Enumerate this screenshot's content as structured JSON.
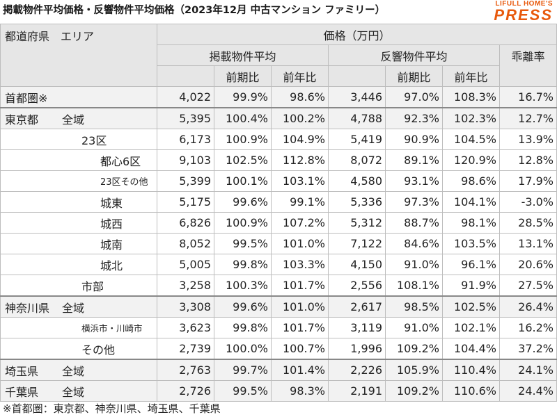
{
  "title": "掲載物件平均価格・反響物件平均価格（2023年12月 中古マンション ファミリー）",
  "brand": {
    "top": "LIFULL HOME'S",
    "main": "PRESS",
    "color": "#e8590c"
  },
  "header": {
    "region_label": "都道府県　エリア",
    "price_label": "価格（万円）",
    "listed_avg": "掲載物件平均",
    "response_avg": "反響物件平均",
    "divergence": "乖離率",
    "mom": "前期比",
    "yoy": "前年比"
  },
  "rows": [
    {
      "pref": "首都圏※",
      "area": "",
      "listed": "4,022",
      "listed_mom": "99.9%",
      "listed_yoy": "98.6%",
      "resp": "3,446",
      "resp_mom": "97.0%",
      "resp_yoy": "108.3%",
      "div": "16.7%"
    },
    {
      "pref": "東京都",
      "area": "全域",
      "listed": "5,395",
      "listed_mom": "100.4%",
      "listed_yoy": "100.2%",
      "resp": "4,788",
      "resp_mom": "92.3%",
      "resp_yoy": "102.3%",
      "div": "12.7%"
    },
    {
      "pref": "",
      "area": "23区",
      "listed": "6,173",
      "listed_mom": "100.9%",
      "listed_yoy": "104.9%",
      "resp": "5,419",
      "resp_mom": "90.9%",
      "resp_yoy": "104.5%",
      "div": "13.9%"
    },
    {
      "pref": "",
      "area": "都心6区",
      "listed": "9,103",
      "listed_mom": "102.5%",
      "listed_yoy": "112.8%",
      "resp": "8,072",
      "resp_mom": "89.1%",
      "resp_yoy": "120.9%",
      "div": "12.8%"
    },
    {
      "pref": "",
      "area": "23区その他",
      "listed": "5,399",
      "listed_mom": "100.1%",
      "listed_yoy": "103.1%",
      "resp": "4,580",
      "resp_mom": "93.1%",
      "resp_yoy": "98.6%",
      "div": "17.9%"
    },
    {
      "pref": "",
      "area": "城東",
      "listed": "5,175",
      "listed_mom": "99.6%",
      "listed_yoy": "99.1%",
      "resp": "5,336",
      "resp_mom": "97.3%",
      "resp_yoy": "104.1%",
      "div": "-3.0%"
    },
    {
      "pref": "",
      "area": "城西",
      "listed": "6,826",
      "listed_mom": "100.9%",
      "listed_yoy": "107.2%",
      "resp": "5,312",
      "resp_mom": "88.7%",
      "resp_yoy": "98.1%",
      "div": "28.5%"
    },
    {
      "pref": "",
      "area": "城南",
      "listed": "8,052",
      "listed_mom": "99.5%",
      "listed_yoy": "101.0%",
      "resp": "7,122",
      "resp_mom": "84.6%",
      "resp_yoy": "103.5%",
      "div": "13.1%"
    },
    {
      "pref": "",
      "area": "城北",
      "listed": "5,005",
      "listed_mom": "99.8%",
      "listed_yoy": "103.3%",
      "resp": "4,150",
      "resp_mom": "91.0%",
      "resp_yoy": "96.1%",
      "div": "20.6%"
    },
    {
      "pref": "",
      "area": "市部",
      "listed": "3,258",
      "listed_mom": "100.3%",
      "listed_yoy": "101.7%",
      "resp": "2,556",
      "resp_mom": "108.1%",
      "resp_yoy": "91.9%",
      "div": "27.5%"
    },
    {
      "pref": "神奈川県",
      "area": "全域",
      "listed": "3,308",
      "listed_mom": "99.6%",
      "listed_yoy": "101.0%",
      "resp": "2,617",
      "resp_mom": "98.5%",
      "resp_yoy": "102.5%",
      "div": "26.4%"
    },
    {
      "pref": "",
      "area": "横浜市・川崎市",
      "listed": "3,623",
      "listed_mom": "99.8%",
      "listed_yoy": "101.7%",
      "resp": "3,119",
      "resp_mom": "91.0%",
      "resp_yoy": "102.1%",
      "div": "16.2%"
    },
    {
      "pref": "",
      "area": "その他",
      "listed": "2,739",
      "listed_mom": "100.0%",
      "listed_yoy": "100.7%",
      "resp": "1,996",
      "resp_mom": "109.2%",
      "resp_yoy": "104.4%",
      "div": "37.2%"
    },
    {
      "pref": "埼玉県",
      "area": "全域",
      "listed": "2,763",
      "listed_mom": "99.7%",
      "listed_yoy": "101.4%",
      "resp": "2,226",
      "resp_mom": "105.9%",
      "resp_yoy": "110.4%",
      "div": "24.1%"
    },
    {
      "pref": "千葉県",
      "area": "全域",
      "listed": "2,726",
      "listed_mom": "99.5%",
      "listed_yoy": "98.3%",
      "resp": "2,191",
      "resp_mom": "109.2%",
      "resp_yoy": "110.6%",
      "div": "24.4%"
    }
  ],
  "footnote": "※首都圏：東京都、神奈川県、埼玉県、千葉県"
}
